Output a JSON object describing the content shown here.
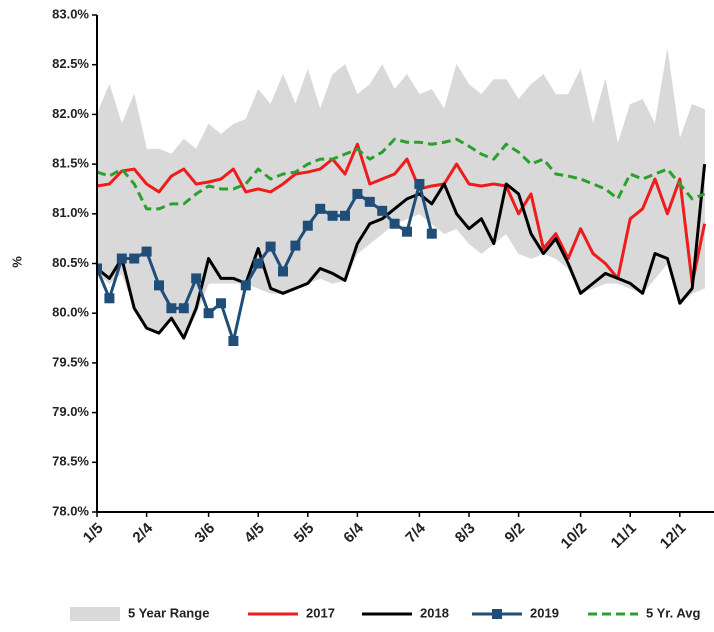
{
  "chart_data": {
    "type": "line",
    "y_label": "%",
    "categories": [
      "1/5",
      null,
      null,
      null,
      "2/4",
      null,
      null,
      null,
      null,
      "3/6",
      null,
      null,
      null,
      "4/5",
      null,
      null,
      null,
      "5/5",
      null,
      null,
      null,
      "6/4",
      null,
      null,
      null,
      null,
      "7/4",
      null,
      null,
      null,
      "8/3",
      null,
      null,
      null,
      "9/2",
      null,
      null,
      null,
      null,
      "10/2",
      null,
      null,
      null,
      "11/1",
      null,
      null,
      null,
      "12/1",
      null,
      null
    ],
    "ylim": [
      78,
      83
    ],
    "yticks": [
      {
        "value": 78,
        "label": "78.0%"
      },
      {
        "value": 78.5,
        "label": "78.5%"
      },
      {
        "value": 79,
        "label": "79.0%"
      },
      {
        "value": 79.5,
        "label": "79.5%"
      },
      {
        "value": 80,
        "label": "80.0%"
      },
      {
        "value": 80.5,
        "label": "80.5%"
      },
      {
        "value": 81,
        "label": "81.0%"
      },
      {
        "value": 81.5,
        "label": "81.5%"
      },
      {
        "value": 82,
        "label": "82.0%"
      },
      {
        "value": 82.5,
        "label": "82.5%"
      },
      {
        "value": 83,
        "label": "83.0%"
      }
    ],
    "series": [
      {
        "name": "5 Year Range",
        "kind": "range",
        "color": "#d9d9d9",
        "values": [
          82.0,
          82.3,
          81.9,
          82.2,
          81.65,
          81.65,
          81.6,
          81.75,
          81.65,
          81.9,
          81.8,
          81.9,
          81.95,
          82.25,
          82.1,
          82.4,
          82.1,
          82.45,
          82.05,
          82.4,
          82.5,
          82.2,
          82.3,
          82.5,
          82.25,
          82.4,
          82.2,
          82.25,
          82.05,
          82.5,
          82.3,
          82.2,
          82.35,
          82.35,
          82.15,
          82.3,
          82.4,
          82.2,
          82.2,
          82.45,
          81.9,
          82.35,
          81.7,
          82.1,
          82.15,
          81.9,
          82.65,
          81.75,
          82.1,
          82.05
        ],
        "low": [
          80.4,
          80.3,
          80.4,
          80.05,
          79.85,
          79.8,
          79.95,
          79.75,
          80.0,
          80.3,
          80.3,
          80.3,
          80.3,
          80.25,
          80.2,
          80.2,
          80.25,
          80.3,
          80.35,
          80.3,
          80.33,
          80.6,
          80.7,
          80.8,
          80.9,
          80.95,
          81.0,
          80.9,
          80.8,
          80.85,
          80.7,
          80.6,
          80.7,
          80.8,
          80.6,
          80.55,
          80.6,
          80.55,
          80.45,
          80.2,
          80.25,
          80.3,
          80.3,
          80.25,
          80.2,
          80.35,
          80.5,
          80.1,
          80.2,
          80.25
        ]
      },
      {
        "name": "2017",
        "color": "#ee1c1c",
        "width": 3,
        "values": [
          81.28,
          81.3,
          81.43,
          81.45,
          81.3,
          81.22,
          81.38,
          81.45,
          81.3,
          81.32,
          81.35,
          81.45,
          81.22,
          81.25,
          81.22,
          81.3,
          81.4,
          81.42,
          81.45,
          81.55,
          81.4,
          81.7,
          81.3,
          81.35,
          81.4,
          81.55,
          81.25,
          81.28,
          81.3,
          81.5,
          81.3,
          81.28,
          81.3,
          81.28,
          81.0,
          81.2,
          80.65,
          80.8,
          80.55,
          80.85,
          80.6,
          80.5,
          80.35,
          80.95,
          81.05,
          81.35,
          81.0,
          81.35,
          80.3,
          80.9
        ]
      },
      {
        "name": "2018",
        "color": "#000000",
        "width": 3,
        "values": [
          80.45,
          80.35,
          80.55,
          80.05,
          79.85,
          79.8,
          79.95,
          79.75,
          80.05,
          80.55,
          80.35,
          80.35,
          80.3,
          80.65,
          80.25,
          80.2,
          80.25,
          80.3,
          80.45,
          80.4,
          80.33,
          80.7,
          80.9,
          80.95,
          81.05,
          81.15,
          81.2,
          81.1,
          81.3,
          81.0,
          80.85,
          80.95,
          80.7,
          81.3,
          81.2,
          80.8,
          80.6,
          80.75,
          80.5,
          80.2,
          80.3,
          80.4,
          80.35,
          80.3,
          80.2,
          80.6,
          80.55,
          80.1,
          80.25,
          81.5
        ]
      },
      {
        "name": "2019",
        "color": "#1f4e79",
        "width": 3,
        "marker": "square",
        "values": [
          80.45,
          80.15,
          80.55,
          80.55,
          80.62,
          80.28,
          80.05,
          80.05,
          80.35,
          80.0,
          80.1,
          79.72,
          80.28,
          80.5,
          80.67,
          80.42,
          80.68,
          80.88,
          81.05,
          80.98,
          80.98,
          81.2,
          81.12,
          81.03,
          80.9,
          80.82,
          81.3,
          80.8,
          null,
          null,
          null,
          null,
          null,
          null,
          null,
          null,
          null,
          null,
          null,
          null,
          null,
          null,
          null,
          null,
          null,
          null,
          null,
          null,
          null,
          null
        ]
      },
      {
        "name": "5 Yr. Avg",
        "color": "#2ca02c",
        "width": 3,
        "dash": true,
        "values": [
          81.42,
          81.38,
          81.45,
          81.3,
          81.05,
          81.05,
          81.1,
          81.1,
          81.2,
          81.28,
          81.25,
          81.25,
          81.3,
          81.45,
          81.35,
          81.4,
          81.42,
          81.5,
          81.55,
          81.55,
          81.6,
          81.65,
          81.55,
          81.62,
          81.75,
          81.72,
          81.72,
          81.7,
          81.72,
          81.75,
          81.68,
          81.6,
          81.55,
          81.7,
          81.62,
          81.5,
          81.55,
          81.4,
          81.38,
          81.35,
          81.3,
          81.25,
          81.15,
          81.4,
          81.35,
          81.4,
          81.45,
          81.3,
          81.15,
          81.2
        ]
      }
    ]
  }
}
